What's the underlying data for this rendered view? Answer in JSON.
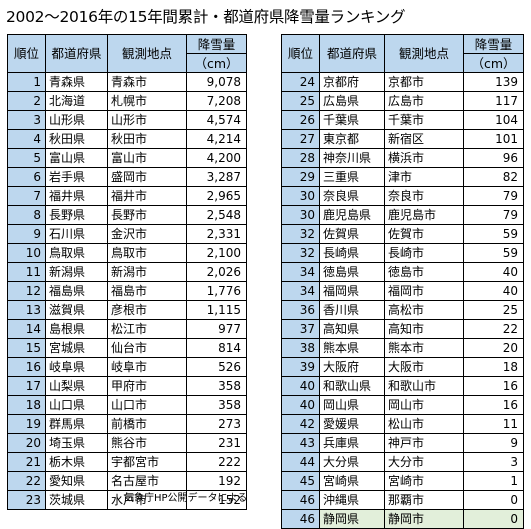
{
  "title": "2002～2016年の15年間累計・都道府県降雪量ランキング",
  "headers": {
    "rank": "順位",
    "prefecture": "都道府県",
    "station": "観測地点",
    "snowfall_line1": "降雪量",
    "snowfall_line2": "（cm）"
  },
  "left_rows": [
    {
      "rank": "1",
      "prefecture": "青森県",
      "station": "青森市",
      "snowfall": "9,078"
    },
    {
      "rank": "2",
      "prefecture": "北海道",
      "station": "札幌市",
      "snowfall": "7,208"
    },
    {
      "rank": "3",
      "prefecture": "山形県",
      "station": "山形市",
      "snowfall": "4,574"
    },
    {
      "rank": "4",
      "prefecture": "秋田県",
      "station": "秋田市",
      "snowfall": "4,214"
    },
    {
      "rank": "5",
      "prefecture": "富山県",
      "station": "富山市",
      "snowfall": "4,200"
    },
    {
      "rank": "6",
      "prefecture": "岩手県",
      "station": "盛岡市",
      "snowfall": "3,287"
    },
    {
      "rank": "7",
      "prefecture": "福井県",
      "station": "福井市",
      "snowfall": "2,965"
    },
    {
      "rank": "8",
      "prefecture": "長野県",
      "station": "長野市",
      "snowfall": "2,548"
    },
    {
      "rank": "9",
      "prefecture": "石川県",
      "station": "金沢市",
      "snowfall": "2,331"
    },
    {
      "rank": "10",
      "prefecture": "鳥取県",
      "station": "鳥取市",
      "snowfall": "2,100"
    },
    {
      "rank": "11",
      "prefecture": "新潟県",
      "station": "新潟市",
      "snowfall": "2,026"
    },
    {
      "rank": "12",
      "prefecture": "福島県",
      "station": "福島市",
      "snowfall": "1,776"
    },
    {
      "rank": "13",
      "prefecture": "滋賀県",
      "station": "彦根市",
      "snowfall": "1,115"
    },
    {
      "rank": "14",
      "prefecture": "島根県",
      "station": "松江市",
      "snowfall": "977"
    },
    {
      "rank": "15",
      "prefecture": "宮城県",
      "station": "仙台市",
      "snowfall": "814"
    },
    {
      "rank": "16",
      "prefecture": "岐阜県",
      "station": "岐阜市",
      "snowfall": "526"
    },
    {
      "rank": "17",
      "prefecture": "山梨県",
      "station": "甲府市",
      "snowfall": "358"
    },
    {
      "rank": "18",
      "prefecture": "山口県",
      "station": "山口市",
      "snowfall": "358"
    },
    {
      "rank": "19",
      "prefecture": "群馬県",
      "station": "前橋市",
      "snowfall": "273"
    },
    {
      "rank": "20",
      "prefecture": "埼玉県",
      "station": "熊谷市",
      "snowfall": "231"
    },
    {
      "rank": "21",
      "prefecture": "栃木県",
      "station": "宇都宮市",
      "snowfall": "222"
    },
    {
      "rank": "22",
      "prefecture": "愛知県",
      "station": "名古屋市",
      "snowfall": "192"
    },
    {
      "rank": "23",
      "prefecture": "茨城県",
      "station": "水戸市",
      "snowfall": "152"
    }
  ],
  "right_rows": [
    {
      "rank": "24",
      "prefecture": "京都府",
      "station": "京都市",
      "snowfall": "139"
    },
    {
      "rank": "25",
      "prefecture": "広島県",
      "station": "広島市",
      "snowfall": "117"
    },
    {
      "rank": "26",
      "prefecture": "千葉県",
      "station": "千葉市",
      "snowfall": "104"
    },
    {
      "rank": "27",
      "prefecture": "東京都",
      "station": "新宿区",
      "snowfall": "101"
    },
    {
      "rank": "28",
      "prefecture": "神奈川県",
      "station": "横浜市",
      "snowfall": "96"
    },
    {
      "rank": "29",
      "prefecture": "三重県",
      "station": "津市",
      "snowfall": "82"
    },
    {
      "rank": "30",
      "prefecture": "奈良県",
      "station": "奈良市",
      "snowfall": "79"
    },
    {
      "rank": "30",
      "prefecture": "鹿児島県",
      "station": "鹿児島市",
      "snowfall": "79"
    },
    {
      "rank": "32",
      "prefecture": "佐賀県",
      "station": "佐賀市",
      "snowfall": "59"
    },
    {
      "rank": "32",
      "prefecture": "長崎県",
      "station": "長崎市",
      "snowfall": "59"
    },
    {
      "rank": "34",
      "prefecture": "徳島県",
      "station": "徳島市",
      "snowfall": "40"
    },
    {
      "rank": "34",
      "prefecture": "福岡県",
      "station": "福岡市",
      "snowfall": "40"
    },
    {
      "rank": "36",
      "prefecture": "香川県",
      "station": "高松市",
      "snowfall": "25"
    },
    {
      "rank": "37",
      "prefecture": "高知県",
      "station": "高知市",
      "snowfall": "22"
    },
    {
      "rank": "38",
      "prefecture": "熊本県",
      "station": "熊本市",
      "snowfall": "20"
    },
    {
      "rank": "39",
      "prefecture": "大阪府",
      "station": "大阪市",
      "snowfall": "18"
    },
    {
      "rank": "40",
      "prefecture": "和歌山県",
      "station": "和歌山市",
      "snowfall": "16"
    },
    {
      "rank": "40",
      "prefecture": "岡山県",
      "station": "岡山市",
      "snowfall": "16"
    },
    {
      "rank": "42",
      "prefecture": "愛媛県",
      "station": "松山市",
      "snowfall": "11"
    },
    {
      "rank": "43",
      "prefecture": "兵庫県",
      "station": "神戸市",
      "snowfall": "9"
    },
    {
      "rank": "44",
      "prefecture": "大分県",
      "station": "大分市",
      "snowfall": "3"
    },
    {
      "rank": "45",
      "prefecture": "宮崎県",
      "station": "宮崎市",
      "snowfall": "1"
    },
    {
      "rank": "46",
      "prefecture": "沖縄県",
      "station": "那覇市",
      "snowfall": "0"
    },
    {
      "rank": "46",
      "prefecture": "静岡県",
      "station": "静岡市",
      "snowfall": "0",
      "highlight": true
    }
  ],
  "source_note": "気象庁HP公開データによる",
  "colors": {
    "header_bg": "#bdd7ee",
    "rank_bg": "#bdd7ee",
    "highlight_bg": "#e2efda"
  }
}
